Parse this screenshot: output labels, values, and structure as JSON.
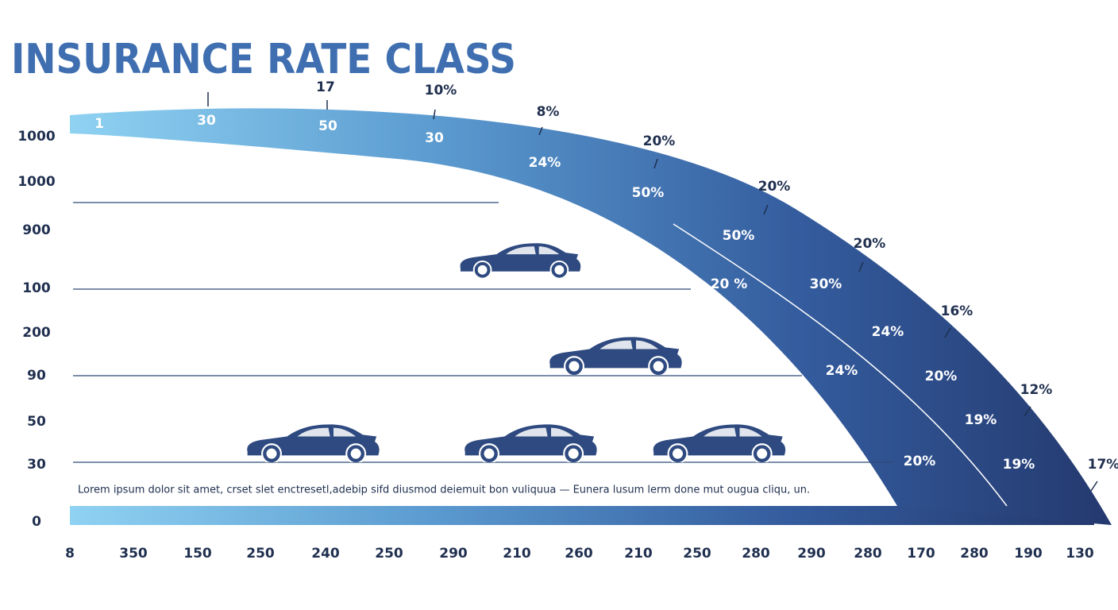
{
  "title": "INSURANCE RATE CLASS",
  "y_labels": [
    "1000",
    "1000",
    "900",
    "100",
    "200",
    "90",
    "50",
    "30",
    "0"
  ],
  "x_labels": [
    "8",
    "350",
    "150",
    "250",
    "240",
    "250",
    "290",
    "210",
    "260",
    "210",
    "250",
    "280",
    "290",
    "280",
    "170",
    "280",
    "190",
    "130"
  ],
  "band_labels": [
    "1",
    "30",
    "50",
    "30",
    "24%",
    "50%",
    "50%",
    "20 %",
    "30%",
    "24%",
    "24%",
    "20%",
    "19%",
    "20%",
    "19%"
  ],
  "outer_labels": [
    "17",
    "10%",
    "8%",
    "20%",
    "20%",
    "20%",
    "16%",
    "12%",
    "17%"
  ],
  "caption": "Lorem ipsum dolor sit amet, crset slet enctresetl,adebip sifd diusmod deiemuit bon vuliquua — Eunera lusum lerm done mut ougua cliqu, un."
}
